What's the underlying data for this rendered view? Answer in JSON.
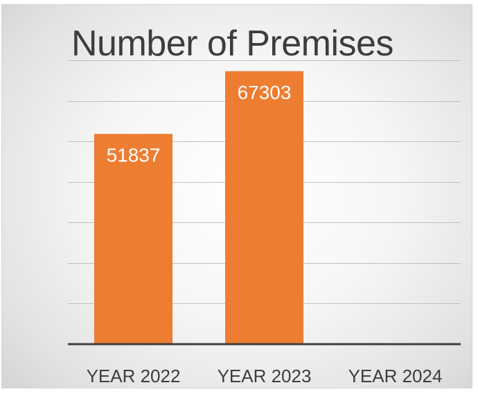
{
  "chart_data": {
    "type": "bar",
    "title": "Number of Premises",
    "xlabel": "",
    "ylabel": "",
    "categories": [
      "YEAR 2022",
      "YEAR 2023",
      "YEAR 2024"
    ],
    "values": [
      51837,
      67303,
      null
    ],
    "data_labels": [
      "51837",
      "67303",
      ""
    ],
    "ylim": [
      0,
      70000
    ],
    "grid": true,
    "legend": "none",
    "colors": {
      "bar": "#ed7d31",
      "gridline": "#bfbfbf",
      "axis": "#3f3f3f",
      "data_label": "#ffffff",
      "text": "#3d3d3d"
    }
  }
}
